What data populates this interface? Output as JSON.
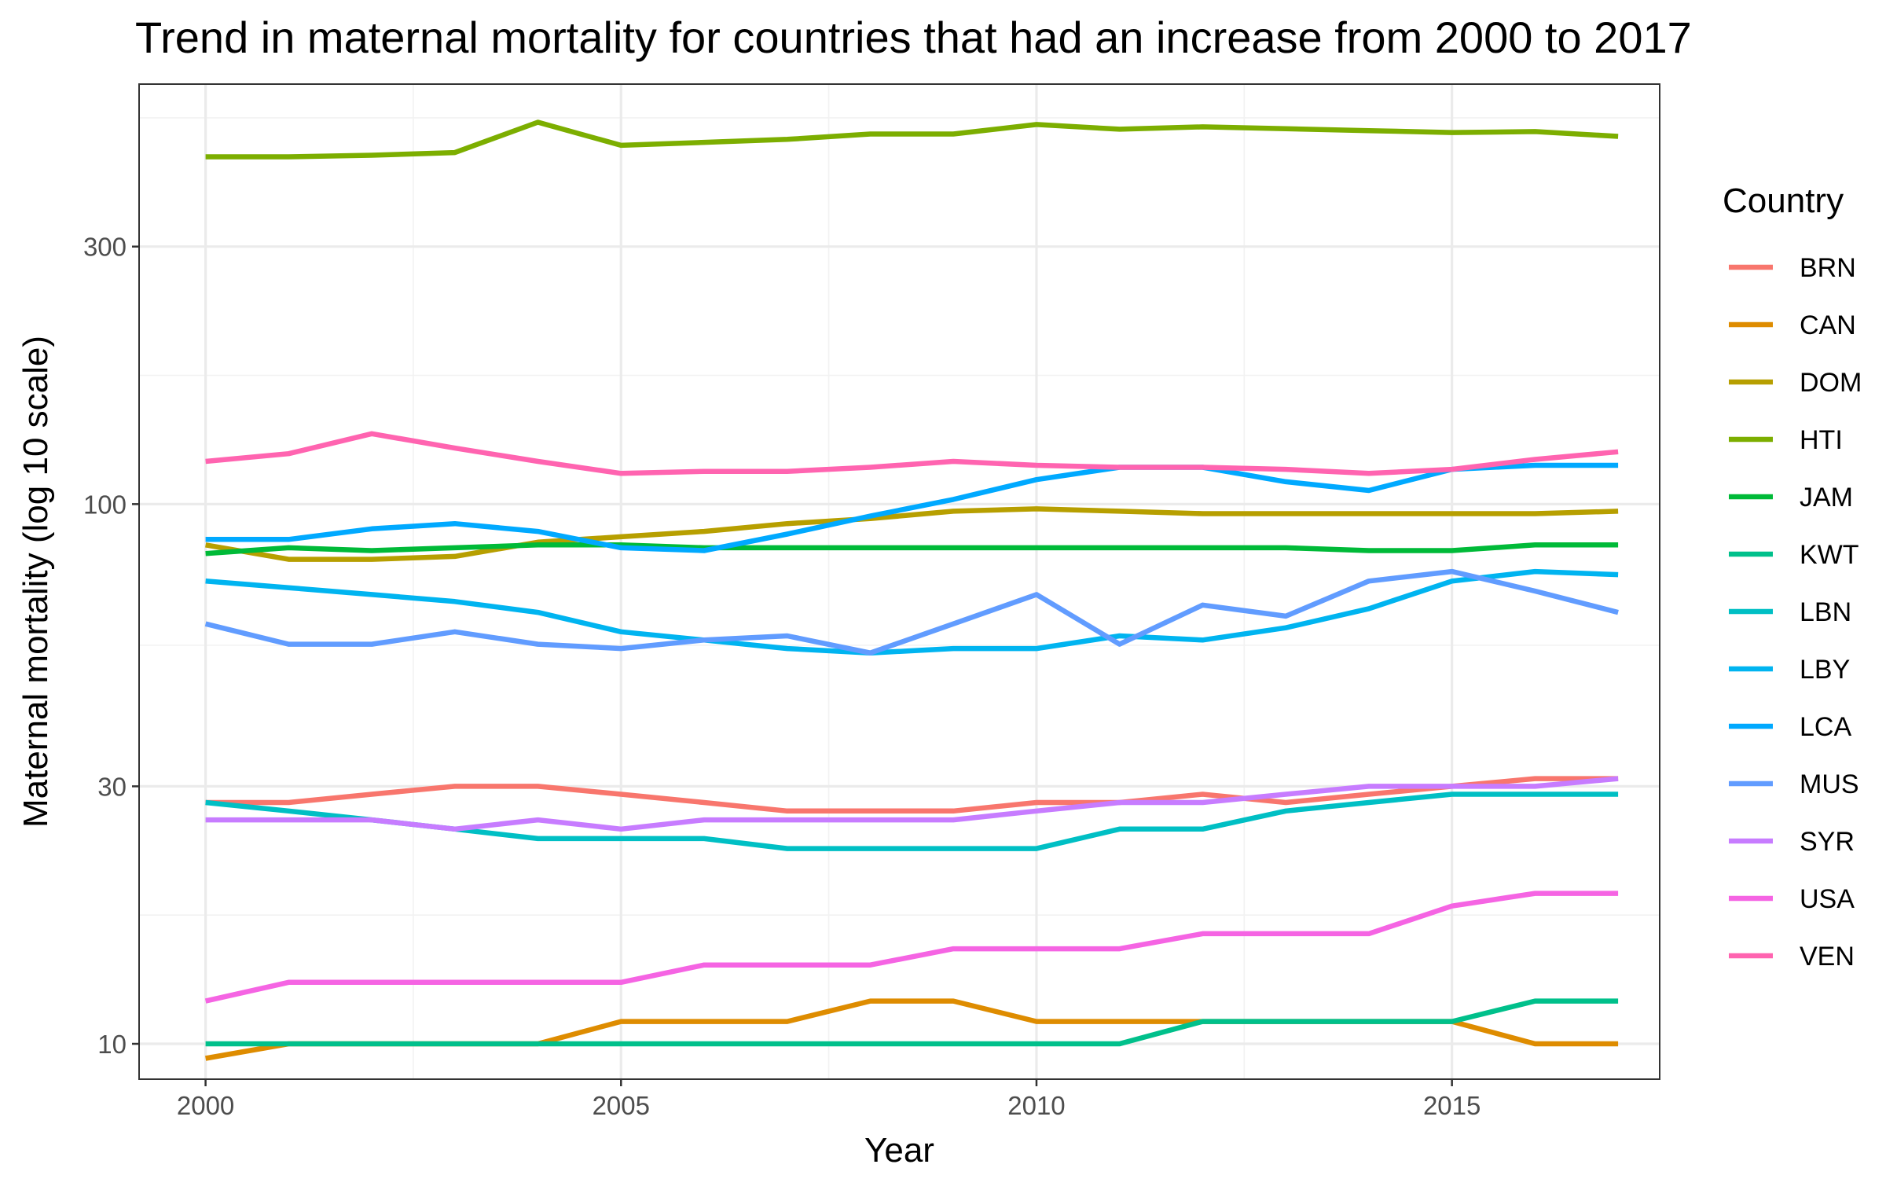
{
  "chart_data": {
    "type": "line",
    "title": "Trend in maternal mortality for countries that had an increase from 2000 to 2017",
    "xlabel": "Year",
    "ylabel": "Maternal mortality (log 10 scale)",
    "y_scale": "log10",
    "xlim": [
      1999.2,
      2017.5
    ],
    "ylim": [
      8.6,
      600
    ],
    "x_ticks": [
      2000,
      2005,
      2010,
      2015
    ],
    "y_ticks": [
      10,
      30,
      100,
      300
    ],
    "grid": true,
    "legend": {
      "title": "Country",
      "position": "right"
    },
    "x": [
      2000,
      2001,
      2002,
      2003,
      2004,
      2005,
      2006,
      2007,
      2008,
      2009,
      2010,
      2011,
      2012,
      2013,
      2014,
      2015,
      2016,
      2017
    ],
    "series": [
      {
        "name": "BRN",
        "color": "#F8766D",
        "values": [
          28,
          28,
          29,
          30,
          30,
          29,
          28,
          27,
          27,
          27,
          28,
          28,
          29,
          28,
          29,
          30,
          31,
          31
        ]
      },
      {
        "name": "CAN",
        "color": "#DE8C00",
        "values": [
          9.4,
          10,
          10,
          10,
          10,
          11,
          11,
          11,
          12,
          12,
          11,
          11,
          11,
          11,
          11,
          11,
          10,
          10
        ]
      },
      {
        "name": "DOM",
        "color": "#B79F00",
        "values": [
          84,
          79,
          79,
          80,
          85,
          87,
          89,
          92,
          94,
          97,
          98,
          97,
          96,
          96,
          96,
          96,
          96,
          97
        ]
      },
      {
        "name": "HTI",
        "color": "#7CAE00",
        "values": [
          440,
          440,
          443,
          448,
          510,
          462,
          468,
          474,
          485,
          485,
          505,
          495,
          500,
          496,
          492,
          488,
          490,
          480
        ]
      },
      {
        "name": "JAM",
        "color": "#00BA38",
        "values": [
          81,
          83,
          82,
          83,
          84,
          84,
          83,
          83,
          83,
          83,
          83,
          83,
          83,
          83,
          82,
          82,
          84,
          84
        ]
      },
      {
        "name": "KWT",
        "color": "#00C08B",
        "values": [
          10,
          10,
          10,
          10,
          10,
          10,
          10,
          10,
          10,
          10,
          10,
          10,
          11,
          11,
          11,
          11,
          12,
          12
        ]
      },
      {
        "name": "LBN",
        "color": "#00BFC4",
        "values": [
          28,
          27,
          26,
          25,
          24,
          24,
          24,
          23,
          23,
          23,
          23,
          25,
          25,
          27,
          28,
          29,
          29,
          29
        ]
      },
      {
        "name": "LBY",
        "color": "#00B4F0",
        "values": [
          72,
          70,
          68,
          66,
          63,
          58,
          56,
          54,
          53,
          54,
          54,
          57,
          56,
          59,
          64,
          72,
          75,
          74
        ]
      },
      {
        "name": "LCA",
        "color": "#00A9FF",
        "values": [
          86,
          86,
          90,
          92,
          89,
          83,
          82,
          88,
          95,
          102,
          111,
          117,
          117,
          110,
          106,
          116,
          118,
          118
        ]
      },
      {
        "name": "MUS",
        "color": "#619CFF",
        "values": [
          60,
          55,
          55,
          58,
          55,
          54,
          56,
          57,
          53,
          60,
          68,
          55,
          65,
          62,
          72,
          75,
          69,
          63
        ]
      },
      {
        "name": "SYR",
        "color": "#C77CFF",
        "values": [
          26,
          26,
          26,
          25,
          26,
          25,
          26,
          26,
          26,
          26,
          27,
          28,
          28,
          29,
          30,
          30,
          30,
          31
        ]
      },
      {
        "name": "USA",
        "color": "#F564E3",
        "values": [
          12,
          13,
          13,
          13,
          13,
          13,
          14,
          14,
          14,
          15,
          15,
          15,
          16,
          16,
          16,
          18,
          19,
          19
        ]
      },
      {
        "name": "VEN",
        "color": "#FF64B0",
        "values": [
          120,
          124,
          135,
          127,
          120,
          114,
          115,
          115,
          117,
          120,
          118,
          117,
          117,
          116,
          114,
          116,
          121,
          125
        ]
      }
    ]
  }
}
